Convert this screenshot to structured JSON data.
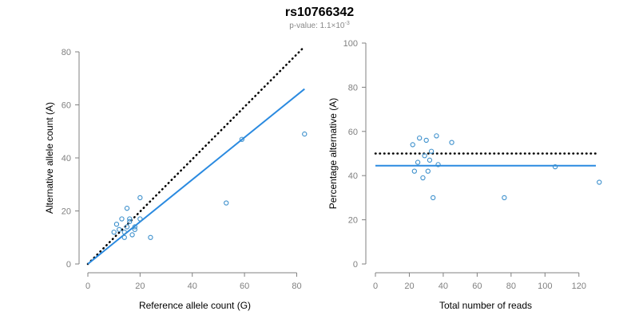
{
  "figure": {
    "title": "rs10766342",
    "subtitle_prefix": "p-value: 1.1×10",
    "subtitle_exponent": "-3"
  },
  "colors": {
    "points": "#3b8fcc",
    "fit_line": "#2a8ae0",
    "reference_line": "#000000",
    "axis": "#808080"
  },
  "chart_data": [
    {
      "type": "scatter",
      "xlabel": "Reference allele count (G)",
      "ylabel": "Alternative allele count (A)",
      "xlim": [
        0,
        82
      ],
      "ylim": [
        0,
        80
      ],
      "xticks": [
        0,
        20,
        40,
        60,
        80
      ],
      "yticks": [
        0,
        20,
        40,
        60,
        80
      ],
      "points": [
        {
          "x": 10,
          "y": 12
        },
        {
          "x": 11,
          "y": 15
        },
        {
          "x": 12,
          "y": 13
        },
        {
          "x": 13,
          "y": 17
        },
        {
          "x": 14,
          "y": 10
        },
        {
          "x": 14,
          "y": 12
        },
        {
          "x": 15,
          "y": 21
        },
        {
          "x": 15,
          "y": 14
        },
        {
          "x": 16,
          "y": 17
        },
        {
          "x": 16,
          "y": 16
        },
        {
          "x": 17,
          "y": 11
        },
        {
          "x": 18,
          "y": 14
        },
        {
          "x": 18,
          "y": 13
        },
        {
          "x": 20,
          "y": 25
        },
        {
          "x": 20,
          "y": 17
        },
        {
          "x": 24,
          "y": 10
        },
        {
          "x": 53,
          "y": 23
        },
        {
          "x": 59,
          "y": 47
        },
        {
          "x": 83,
          "y": 49
        }
      ],
      "lines": [
        {
          "style": "dotted",
          "from": [
            0,
            0
          ],
          "to": [
            83,
            82
          ]
        },
        {
          "style": "solid",
          "from": [
            0,
            0
          ],
          "to": [
            83,
            66
          ]
        }
      ]
    },
    {
      "type": "scatter",
      "xlabel": "Total number of reads",
      "ylabel": "Percentage alternative (A)",
      "xlim": [
        0,
        130
      ],
      "ylim": [
        0,
        100
      ],
      "xticks": [
        0,
        20,
        40,
        60,
        80,
        100,
        120
      ],
      "yticks": [
        0,
        20,
        40,
        60,
        80,
        100
      ],
      "points": [
        {
          "x": 22,
          "y": 54
        },
        {
          "x": 23,
          "y": 42
        },
        {
          "x": 25,
          "y": 46
        },
        {
          "x": 26,
          "y": 57
        },
        {
          "x": 28,
          "y": 39
        },
        {
          "x": 29,
          "y": 49
        },
        {
          "x": 30,
          "y": 56
        },
        {
          "x": 31,
          "y": 42
        },
        {
          "x": 32,
          "y": 47
        },
        {
          "x": 33,
          "y": 51
        },
        {
          "x": 34,
          "y": 30
        },
        {
          "x": 36,
          "y": 58
        },
        {
          "x": 37,
          "y": 45
        },
        {
          "x": 45,
          "y": 55
        },
        {
          "x": 76,
          "y": 30
        },
        {
          "x": 106,
          "y": 44
        },
        {
          "x": 132,
          "y": 37
        }
      ],
      "lines": [
        {
          "style": "dotted",
          "from": [
            0,
            50
          ],
          "to": [
            130,
            50
          ]
        },
        {
          "style": "solid",
          "from": [
            0,
            44.5
          ],
          "to": [
            130,
            44.5
          ]
        }
      ]
    }
  ]
}
